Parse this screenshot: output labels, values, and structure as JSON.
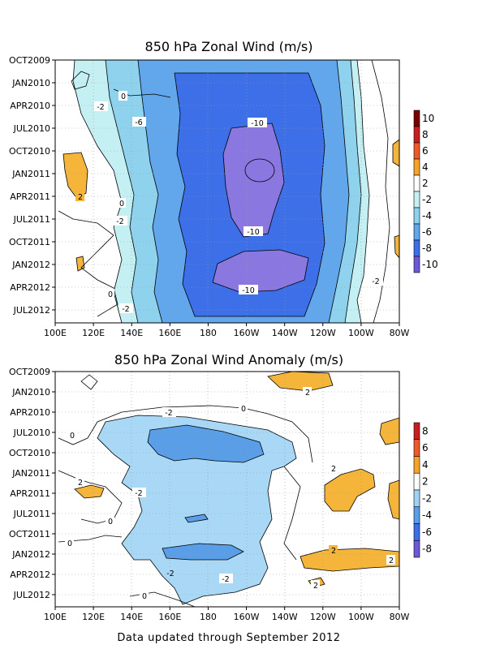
{
  "footer": "Data updated through September 2012",
  "chart_data": [
    {
      "type": "heatmap",
      "title": "850 hPa Zonal Wind (m/s)",
      "x_ticks": [
        "100E",
        "120E",
        "140E",
        "160E",
        "180",
        "160W",
        "140W",
        "120W",
        "100W",
        "80W"
      ],
      "y_ticks": [
        "OCT2009",
        "JAN2010",
        "APR2010",
        "JUL2010",
        "OCT2010",
        "JAN2011",
        "APR2011",
        "JUL2011",
        "OCT2011",
        "JAN2012",
        "APR2012",
        "JUL2012"
      ],
      "colorbar": {
        "labels": [
          "10",
          "8",
          "6",
          "4",
          "2",
          "-2",
          "-4",
          "-6",
          "-8",
          "-10"
        ],
        "colors": [
          "#7a0000",
          "#c81e1e",
          "#ee5a2a",
          "#f5a32a",
          "#ffffff",
          "#c4f0f4",
          "#8fd2ee",
          "#62a6ec",
          "#3c6fe8",
          "#6e58d8"
        ]
      },
      "contour_labels": [
        "-6",
        "-2",
        "-2",
        "-2",
        "-2",
        "-10",
        "-10",
        "-10",
        "0",
        "0",
        "0",
        "2",
        "-2"
      ],
      "colors": {
        "pos2": "#f5b53a",
        "neg2": "#c4f0f4",
        "neg4": "#8fd2ee",
        "neg6": "#62a6ec",
        "neg8": "#3c6fe8",
        "neg10": "#8a78e0"
      }
    },
    {
      "type": "heatmap",
      "title": "850 hPa Zonal Wind Anomaly (m/s)",
      "x_ticks": [
        "100E",
        "120E",
        "140E",
        "160E",
        "180",
        "160W",
        "140W",
        "120W",
        "100W",
        "80W"
      ],
      "y_ticks": [
        "OCT2009",
        "JAN2010",
        "APR2010",
        "JUL2010",
        "OCT2010",
        "JAN2011",
        "APR2011",
        "JUL2011",
        "OCT2011",
        "JAN2012",
        "APR2012",
        "JUL2012"
      ],
      "colorbar": {
        "labels": [
          "8",
          "6",
          "4",
          "2",
          "-2",
          "-4",
          "-6",
          "-8"
        ],
        "colors": [
          "#c81e1e",
          "#ee5a2a",
          "#f5a32a",
          "#ffffff",
          "#9fd2f4",
          "#5b9ee8",
          "#3c6fe8",
          "#6e58d8"
        ]
      },
      "contour_labels": [
        "-2",
        "-2",
        "-2",
        "-2",
        "-2",
        "-2",
        "0",
        "0",
        "0",
        "0",
        "0",
        "2",
        "2",
        "2",
        "2",
        "2",
        "2",
        "-2"
      ],
      "colors": {
        "pos2": "#f5b53a",
        "neg2": "#a8d8f5",
        "neg4": "#5b9ee8"
      }
    }
  ]
}
